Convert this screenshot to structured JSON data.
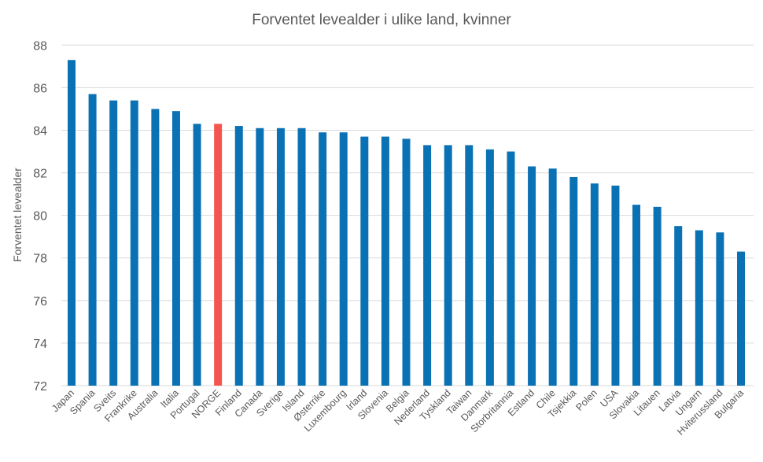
{
  "chart_data": {
    "type": "bar",
    "title": "Forventet levealder i ulike land, kvinner",
    "xlabel": "",
    "ylabel": "Forventet levealder",
    "ylim": [
      72,
      88
    ],
    "yticks": [
      72,
      74,
      76,
      78,
      80,
      82,
      84,
      86,
      88
    ],
    "grid": true,
    "categories": [
      "Japan",
      "Spania",
      "Sveits",
      "Frankrike",
      "Australia",
      "Italia",
      "Portugal",
      "NORGE",
      "Finland",
      "Canada",
      "Sverige",
      "Island",
      "Østerrike",
      "Luxembourg",
      "Irland",
      "Slovenia",
      "Belgia",
      "Nederland",
      "Tyskland",
      "Taiwan",
      "Danmark",
      "Storbritannia",
      "Estland",
      "Chile",
      "Tsjekkia",
      "Polen",
      "USA",
      "Slovakia",
      "Litauen",
      "Latvia",
      "Ungarn",
      "Hviterussland",
      "Bulgaria"
    ],
    "values": [
      87.3,
      85.7,
      85.4,
      85.4,
      85.0,
      84.9,
      84.3,
      84.3,
      84.2,
      84.1,
      84.1,
      84.1,
      83.9,
      83.9,
      83.7,
      83.7,
      83.6,
      83.3,
      83.3,
      83.3,
      83.1,
      83.0,
      82.3,
      82.2,
      81.8,
      81.5,
      81.4,
      80.5,
      80.4,
      79.5,
      79.3,
      79.2,
      78.3
    ],
    "highlight": "NORGE",
    "colors": {
      "bar": "#0A72B4",
      "highlight": "#F4554F",
      "grid": "#D9D9D9"
    }
  }
}
